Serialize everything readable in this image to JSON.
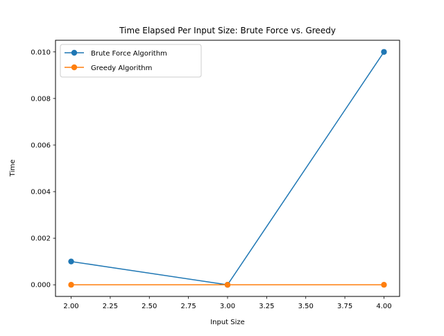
{
  "chart_data": {
    "type": "line",
    "title": "Time Elapsed Per Input Size: Brute Force vs. Greedy",
    "xlabel": "Input Size",
    "ylabel": "Time",
    "xlim": [
      1.9,
      4.1
    ],
    "ylim": [
      -0.0005,
      0.0105
    ],
    "x_ticks": [
      2.0,
      2.25,
      2.5,
      2.75,
      3.0,
      3.25,
      3.5,
      3.75,
      4.0
    ],
    "x_tick_labels": [
      "2.00",
      "2.25",
      "2.50",
      "2.75",
      "3.00",
      "3.25",
      "3.50",
      "3.75",
      "4.00"
    ],
    "y_ticks": [
      0.0,
      0.002,
      0.004,
      0.006,
      0.008,
      0.01
    ],
    "y_tick_labels": [
      "0.000",
      "0.002",
      "0.004",
      "0.006",
      "0.008",
      "0.010"
    ],
    "grid": false,
    "legend_position": "top-left",
    "x": [
      2,
      3,
      4
    ],
    "series": [
      {
        "name": "Brute Force Algorithm",
        "color": "#1f77b4",
        "marker": "circle",
        "values": [
          0.001,
          0.0,
          0.01
        ]
      },
      {
        "name": "Greedy Algorithm",
        "color": "#ff7f0e",
        "marker": "circle",
        "values": [
          0.0,
          0.0,
          0.0
        ]
      }
    ]
  }
}
